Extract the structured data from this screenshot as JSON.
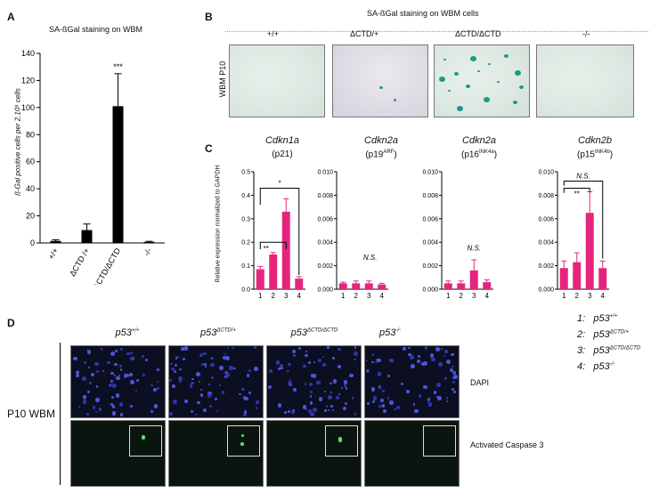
{
  "panel_letters": {
    "a": "A",
    "b": "B",
    "c": "C",
    "d": "D"
  },
  "panelA": {
    "title": "SA-ßGal staining on WBM",
    "ylabel": "ß-Gal positive cells per 2.10⁵ cells",
    "significance": "***"
  },
  "panelB": {
    "title": "SA-ßGal staining on WBM cells",
    "row_label": "WBM P10",
    "columns": [
      "+/+",
      "ΔCTD/+",
      "ΔCTD/ΔCTD",
      "-/-"
    ]
  },
  "panelC": {
    "ylabel": "Relative expression normalized to GAPDH",
    "genes": [
      {
        "name": "Cdkn1a",
        "protein": "(p21)",
        "prot_base": "p21",
        "prot_sup": ""
      },
      {
        "name": "Cdkn2a",
        "protein": "(p19ARF)",
        "prot_base": "p19",
        "prot_sup": "ARF"
      },
      {
        "name": "Cdkn2a",
        "protein": "(p16INK4a)",
        "prot_base": "p16",
        "prot_sup": "INK4a"
      },
      {
        "name": "Cdkn2b",
        "protein": "(p15INK4b)",
        "prot_base": "p15",
        "prot_sup": "INK4b"
      }
    ],
    "ns": "N.S.",
    "sig_single": "*",
    "sig_double": "**"
  },
  "panelD": {
    "row_label": "P10 WBM",
    "columns": [
      {
        "base": "p53",
        "sup": "+/+"
      },
      {
        "base": "p53",
        "sup": "ΔCTD/+"
      },
      {
        "base": "p53",
        "sup": "ΔCTD/ΔCTD"
      },
      {
        "base": "p53",
        "sup": "-/-"
      }
    ],
    "rows": [
      "DAPI",
      "Activated Caspase 3"
    ]
  },
  "legend": [
    {
      "num": "1:",
      "base": "p53",
      "sup": "+/+"
    },
    {
      "num": "2:",
      "base": "p53",
      "sup": "ΔCTD/+"
    },
    {
      "num": "3:",
      "base": "p53",
      "sup": "ΔCTD/ΔCTD"
    },
    {
      "num": "4:",
      "base": "p53",
      "sup": "-/-"
    }
  ],
  "colors": {
    "bar_black": "#000000",
    "bar_pink": "#e5257d",
    "error": "#e5257d"
  },
  "chart_data": [
    {
      "type": "bar",
      "panel": "A",
      "title": "SA-ßGal staining on WBM",
      "ylabel": "ß-Gal positive cells per 2.10⁵ cells",
      "categories": [
        "+/+",
        "ΔCTD /+",
        "ΔCTD/ΔCTD",
        "-/-"
      ],
      "values": [
        1.5,
        9.5,
        101,
        0.8
      ],
      "errors": [
        0.8,
        4.5,
        24,
        0.4
      ],
      "ylim": [
        0,
        140
      ],
      "yticks": [
        0,
        20,
        40,
        60,
        80,
        100,
        120,
        140
      ]
    },
    {
      "type": "bar",
      "panel": "C1",
      "title": "Cdkn1a (p21)",
      "categories": [
        "1",
        "2",
        "3",
        "4"
      ],
      "values": [
        0.085,
        0.148,
        0.33,
        0.045
      ],
      "errors": [
        0.012,
        0.008,
        0.055,
        0.008
      ],
      "ylim": [
        0,
        0.5
      ],
      "yticks": [
        "0.0",
        "0.1",
        "0.2",
        "0.3",
        "0.4",
        "0.5"
      ]
    },
    {
      "type": "bar",
      "panel": "C2",
      "title": "Cdkn2a (p19ARF)",
      "categories": [
        "1",
        "2",
        "3",
        "4"
      ],
      "values": [
        0.0005,
        0.0005,
        0.0005,
        0.0004
      ],
      "errors": [
        0.0001,
        0.0002,
        0.0002,
        0.0001
      ],
      "ylim": [
        0,
        0.01
      ],
      "yticks": [
        "0.000",
        "0.002",
        "0.004",
        "0.006",
        "0.008",
        "0.010"
      ]
    },
    {
      "type": "bar",
      "panel": "C3",
      "title": "Cdkn2a (p16INK4a)",
      "categories": [
        "1",
        "2",
        "3",
        "4"
      ],
      "values": [
        0.0005,
        0.0005,
        0.0016,
        0.0006
      ],
      "errors": [
        0.0002,
        0.0002,
        0.0009,
        0.0002
      ],
      "ylim": [
        0,
        0.01
      ],
      "yticks": [
        "0.000",
        "0.002",
        "0.004",
        "0.006",
        "0.008",
        "0.010"
      ]
    },
    {
      "type": "bar",
      "panel": "C4",
      "title": "Cdkn2b (p15INK4b)",
      "categories": [
        "1",
        "2",
        "3",
        "4"
      ],
      "values": [
        0.0018,
        0.0023,
        0.0065,
        0.0018
      ],
      "errors": [
        0.0006,
        0.0008,
        0.0018,
        0.0006
      ],
      "ylim": [
        0,
        0.01
      ],
      "yticks": [
        "0.000",
        "0.002",
        "0.004",
        "0.006",
        "0.008",
        "0.010"
      ]
    }
  ]
}
